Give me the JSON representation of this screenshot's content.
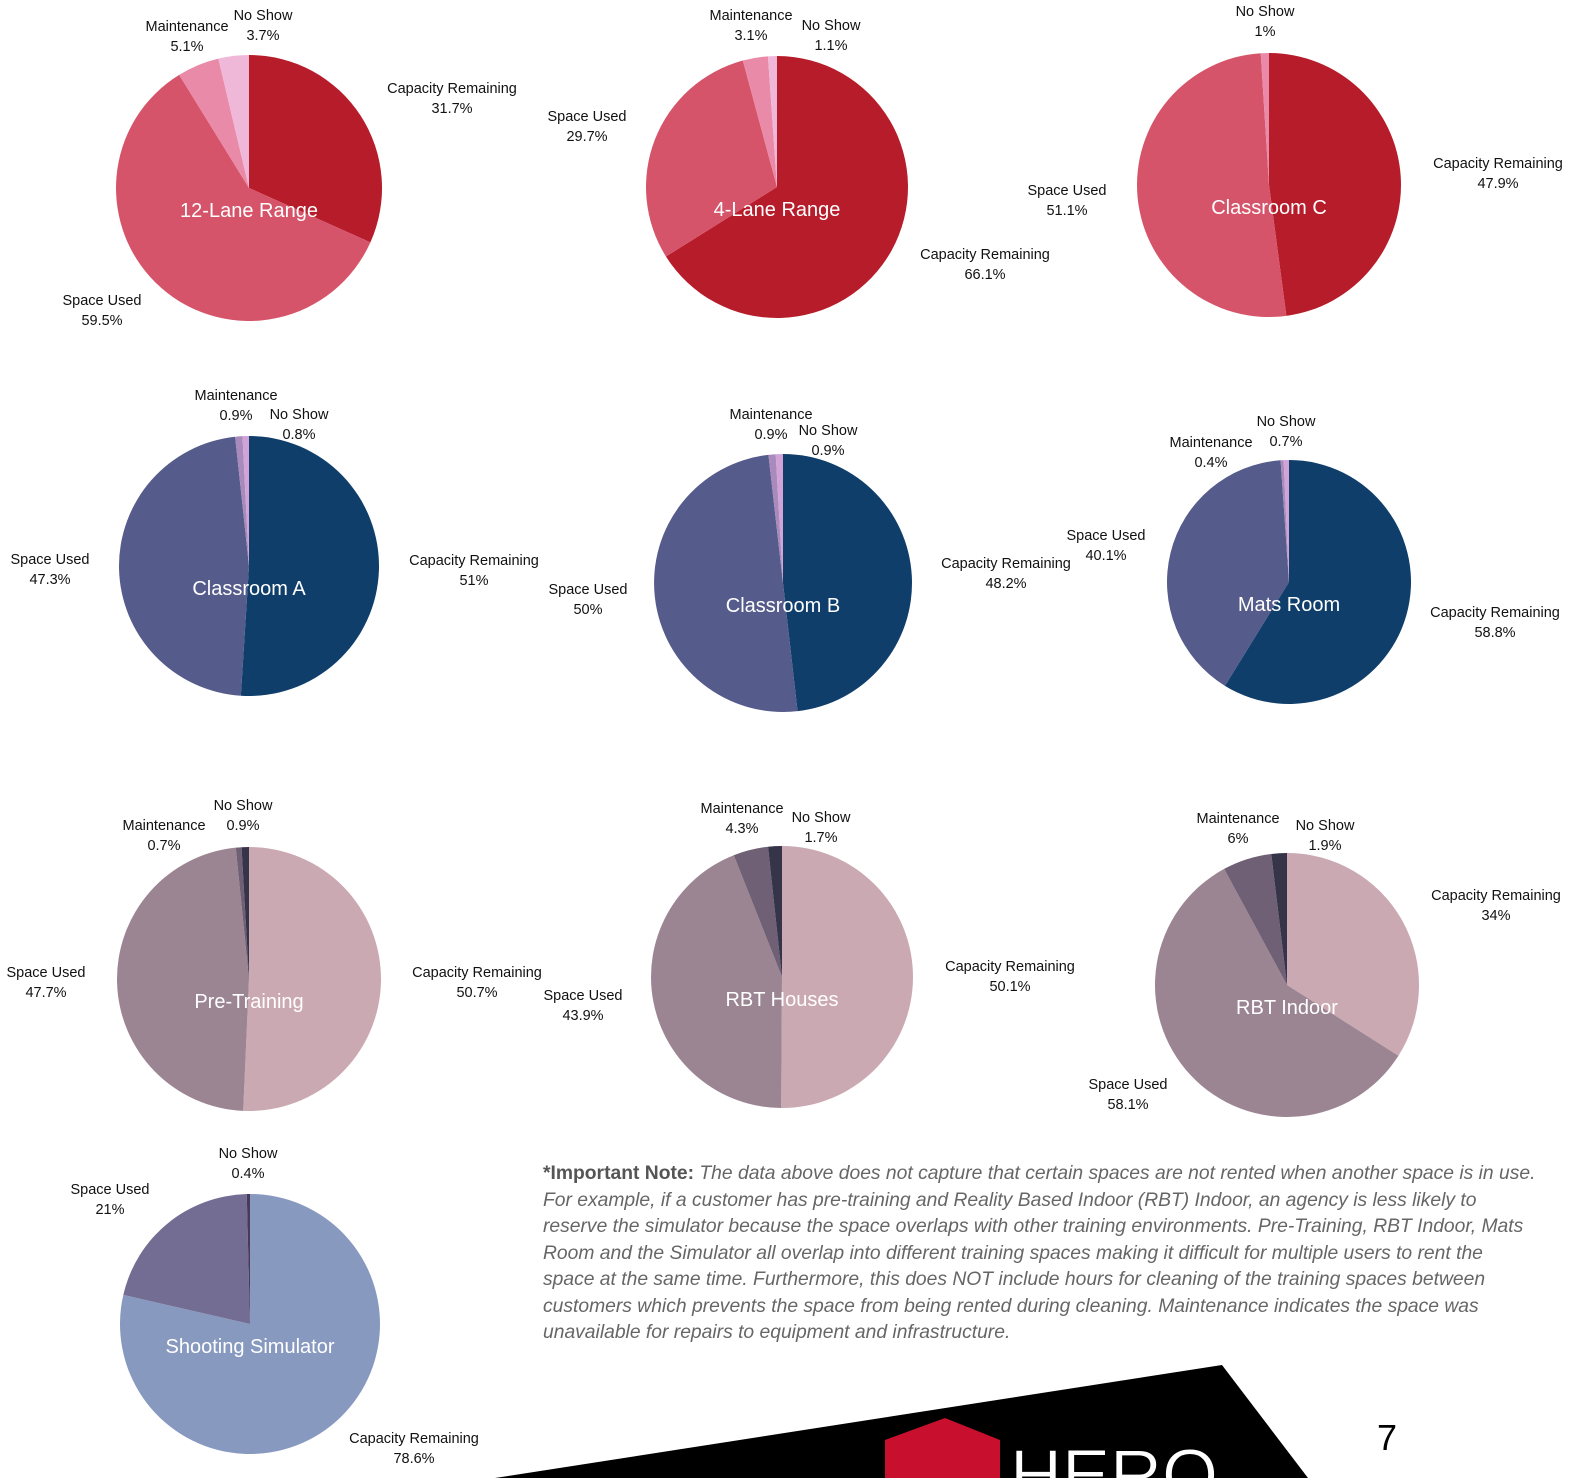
{
  "chart_data": [
    {
      "type": "pie",
      "title": "12-Lane Range",
      "categories": [
        "Capacity Remaining",
        "Space Used",
        "Maintenance",
        "No Show"
      ],
      "values": [
        31.7,
        59.5,
        5.1,
        3.7
      ],
      "value_labels": [
        "31.7%",
        "59.5%",
        "5.1%",
        "3.7%"
      ],
      "colors": [
        "#b71c2b",
        "#d6546a",
        "#e98aa8",
        "#f0b8d8"
      ]
    },
    {
      "type": "pie",
      "title": "4-Lane Range",
      "categories": [
        "Capacity Remaining",
        "Space Used",
        "Maintenance",
        "No Show"
      ],
      "values": [
        66.1,
        29.7,
        3.1,
        1.1
      ],
      "value_labels": [
        "66.1%",
        "29.7%",
        "3.1%",
        "1.1%"
      ],
      "colors": [
        "#b71c2b",
        "#d6546a",
        "#e98aa8",
        "#f0b8d8"
      ]
    },
    {
      "type": "pie",
      "title": "Classroom C",
      "categories": [
        "Capacity Remaining",
        "Space Used",
        "No Show"
      ],
      "values": [
        47.9,
        51.1,
        1
      ],
      "value_labels": [
        "47.9%",
        "51.1%",
        "1%"
      ],
      "colors": [
        "#b71c2b",
        "#d6546a",
        "#e98aa8"
      ]
    },
    {
      "type": "pie",
      "title": "Classroom A",
      "categories": [
        "Capacity Remaining",
        "Space Used",
        "Maintenance",
        "No Show"
      ],
      "values": [
        51,
        47.3,
        0.9,
        0.8
      ],
      "value_labels": [
        "51%",
        "47.3%",
        "0.9%",
        "0.8%"
      ],
      "colors": [
        "#0f3e6b",
        "#555b8a",
        "#a98abc",
        "#d1a3d6"
      ]
    },
    {
      "type": "pie",
      "title": "Classroom B",
      "categories": [
        "Capacity Remaining",
        "Space Used",
        "Maintenance",
        "No Show"
      ],
      "values": [
        48.2,
        50,
        0.9,
        0.9
      ],
      "value_labels": [
        "48.2%",
        "50%",
        "0.9%",
        "0.9%"
      ],
      "colors": [
        "#0f3e6b",
        "#555b8a",
        "#a98abc",
        "#d1a3d6"
      ]
    },
    {
      "type": "pie",
      "title": "Mats Room",
      "categories": [
        "Capacity Remaining",
        "Space Used",
        "Maintenance",
        "No Show"
      ],
      "values": [
        58.8,
        40.1,
        0.4,
        0.7
      ],
      "value_labels": [
        "58.8%",
        "40.1%",
        "0.4%",
        "0.7%"
      ],
      "colors": [
        "#0f3e6b",
        "#555b8a",
        "#a98abc",
        "#d1a3d6"
      ]
    },
    {
      "type": "pie",
      "title": "Pre-Training",
      "categories": [
        "Capacity Remaining",
        "Space Used",
        "Maintenance",
        "No Show"
      ],
      "values": [
        50.7,
        47.7,
        0.7,
        0.9
      ],
      "value_labels": [
        "50.7%",
        "47.7%",
        "0.7%",
        "0.9%"
      ],
      "colors": [
        "#cba9b2",
        "#9c8593",
        "#6f6075",
        "#353449"
      ]
    },
    {
      "type": "pie",
      "title": "RBT Houses",
      "categories": [
        "Capacity Remaining",
        "Space Used",
        "Maintenance",
        "No Show"
      ],
      "values": [
        50.1,
        43.9,
        4.3,
        1.7
      ],
      "value_labels": [
        "50.1%",
        "43.9%",
        "4.3%",
        "1.7%"
      ],
      "colors": [
        "#cba9b2",
        "#9c8593",
        "#6f6075",
        "#353449"
      ]
    },
    {
      "type": "pie",
      "title": "RBT Indoor",
      "categories": [
        "Capacity Remaining",
        "Space Used",
        "Maintenance",
        "No Show"
      ],
      "values": [
        34,
        58.1,
        6,
        1.9
      ],
      "value_labels": [
        "34%",
        "58.1%",
        "6%",
        "1.9%"
      ],
      "colors": [
        "#cba9b2",
        "#9c8593",
        "#6f6075",
        "#353449"
      ]
    },
    {
      "type": "pie",
      "title": "Shooting Simulator",
      "categories": [
        "Capacity Remaining",
        "Space Used",
        "No Show"
      ],
      "values": [
        78.6,
        21,
        0.4
      ],
      "value_labels": [
        "78.6%",
        "21%",
        "0.4%"
      ],
      "colors": [
        "#8899c0",
        "#736d94",
        "#4a3a5a"
      ]
    }
  ],
  "note": {
    "lead": "*Important Note:",
    "text": "The data above does not capture that certain spaces are not rented when another space is in use. For example, if a customer has pre-training and Reality Based Indoor (RBT) Indoor, an agency is less likely to reserve the simulator because the space overlaps with other training environments.  Pre-Training, RBT Indoor, Mats Room and the Simulator all overlap into different training spaces making it difficult for multiple users to rent the space at the same time. Furthermore, this does NOT include hours for cleaning of the training spaces between customers which prevents the space from being rented during cleaning. Maintenance indicates the space was unavailable for repairs to equipment and infrastructure."
  },
  "logo": "HERO",
  "page_number": "7"
}
